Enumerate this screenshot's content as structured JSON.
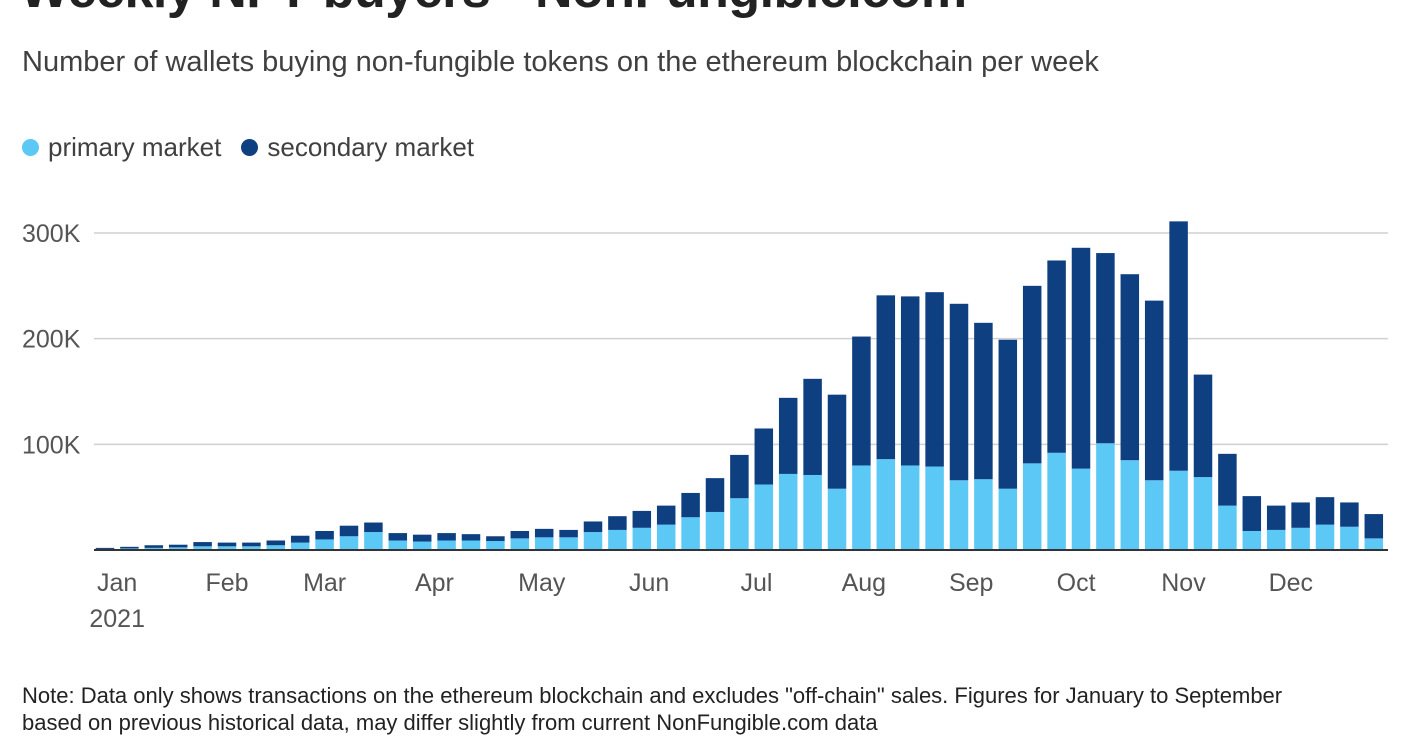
{
  "title": "Weekly NFT buyers - NonFungible.com",
  "subtitle": "Number of wallets buying non-fungible tokens on the ethereum blockchain per week",
  "note": {
    "line1": "Note: Data only shows transactions on the ethereum blockchain and excludes \"off-chain\" sales. Figures for January to September",
    "line2": "based on previous historical data, may differ slightly from current NonFungible.com data"
  },
  "colors": {
    "primary": "#5bc8f5",
    "secondary": "#0e3f80",
    "grid": "#d0d0d0",
    "axis": "#333333"
  },
  "chart_data": {
    "type": "bar",
    "stacked": true,
    "ylim": [
      0,
      320000
    ],
    "yticks": [
      {
        "value": 100000,
        "label": "100K"
      },
      {
        "value": 200000,
        "label": "200K"
      },
      {
        "value": 300000,
        "label": "300K"
      }
    ],
    "xtick_labels": [
      {
        "label": "Jan",
        "week_index": 1,
        "sublabel": "2021"
      },
      {
        "label": "Feb",
        "week_index": 5.5
      },
      {
        "label": "Mar",
        "week_index": 9.5
      },
      {
        "label": "Apr",
        "week_index": 14
      },
      {
        "label": "May",
        "week_index": 18.4
      },
      {
        "label": "Jun",
        "week_index": 22.8
      },
      {
        "label": "Jul",
        "week_index": 27.2
      },
      {
        "label": "Aug",
        "week_index": 31.6
      },
      {
        "label": "Sep",
        "week_index": 36
      },
      {
        "label": "Oct",
        "week_index": 40.3
      },
      {
        "label": "Nov",
        "week_index": 44.7
      },
      {
        "label": "Dec",
        "week_index": 49.1
      }
    ],
    "legend": [
      "primary market",
      "secondary market"
    ],
    "legend_position": "top-left",
    "grid": true,
    "series": [
      {
        "name": "primary market",
        "values": [
          1000,
          1500,
          2000,
          2500,
          3500,
          3500,
          3500,
          4500,
          7000,
          10000,
          13000,
          17000,
          9000,
          8000,
          9000,
          9000,
          8500,
          11000,
          12000,
          12000,
          17000,
          19000,
          21000,
          24000,
          31000,
          36000,
          49000,
          62000,
          72000,
          71000,
          58000,
          80000,
          86000,
          80000,
          79000,
          66000,
          67000,
          58000,
          82000,
          92000,
          77000,
          101000,
          85000,
          66000,
          75000,
          69000,
          42000,
          18000,
          19000,
          21000,
          24000,
          22000,
          11000
        ]
      },
      {
        "name": "secondary market",
        "values": [
          1000,
          1500,
          2500,
          2500,
          4000,
          3500,
          3500,
          4500,
          6500,
          8000,
          10000,
          9000,
          7000,
          6500,
          7000,
          6000,
          4500,
          7000,
          8000,
          7000,
          10000,
          13000,
          16000,
          18000,
          23000,
          32000,
          41000,
          53000,
          72000,
          91000,
          89000,
          122000,
          155000,
          160000,
          165000,
          167000,
          148000,
          141000,
          168000,
          182000,
          209000,
          180000,
          176000,
          170000,
          236000,
          97000,
          49000,
          33000,
          23000,
          24000,
          26000,
          23000,
          23000
        ]
      }
    ]
  }
}
